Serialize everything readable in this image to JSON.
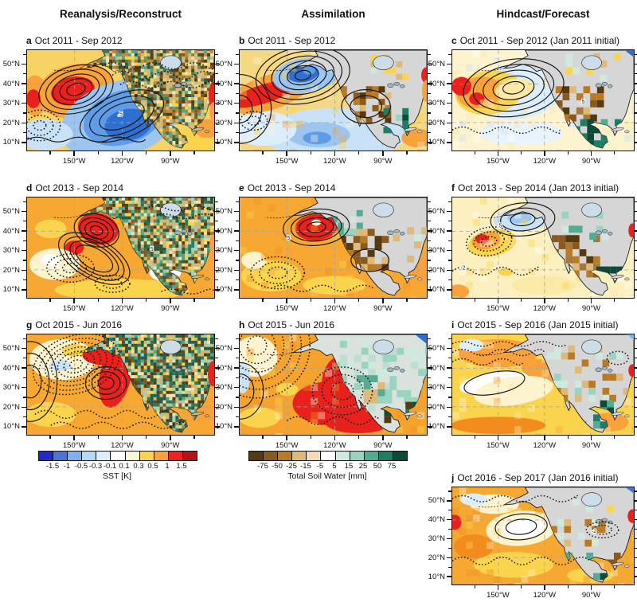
{
  "columns": [
    "Reanalysis/Reconstruct",
    "Assimilation",
    "Hindcast/Forecast"
  ],
  "panels": [
    {
      "letter": "a",
      "period": "Oct 2011 - Sep 2012",
      "contour_labels": [
        ".5"
      ]
    },
    {
      "letter": "b",
      "period": "Oct 2011 - Sep 2012",
      "contour_labels": []
    },
    {
      "letter": "c",
      "period": "Oct 2011 - Sep 2012 (Jan 2011 initial)",
      "contour_labels": [
        ".5"
      ]
    },
    {
      "letter": "d",
      "period": "Oct 2013 - Sep 2014",
      "contour_labels": [
        "5"
      ]
    },
    {
      "letter": "e",
      "period": "Oct 2013 - Sep 2014",
      "contour_labels": [
        "5"
      ]
    },
    {
      "letter": "f",
      "period": "Oct 2013 - Sep 2014 (Jan 2013 initial)",
      "contour_labels": [
        ".5",
        "-2"
      ]
    },
    {
      "letter": "g",
      "period": "Oct 2015 - Jun 2016",
      "contour_labels": []
    },
    {
      "letter": "h",
      "period": "Oct 2015 - Jun 2016",
      "contour_labels": []
    },
    {
      "letter": "i",
      "period": "Oct 2015 - Sep 2016 (Jan 2015 initial)",
      "contour_labels": []
    },
    {
      "letter": "j",
      "period": "Oct 2016 - Sep 2017 (Jan 2016 initial)",
      "contour_labels": [
        "-2"
      ]
    }
  ],
  "axes": {
    "lat_ticks": [
      "50°N",
      "40°N",
      "30°N",
      "20°N",
      "10°N"
    ],
    "lon_ticks": [
      "150°W",
      "120°W",
      "90°W"
    ]
  },
  "colorbars": [
    {
      "title": "SST [K]",
      "tick_labels": [
        "-1.5",
        "-1",
        "-0.5",
        "-0.3",
        "-0.1",
        "0.1",
        "0.3",
        "0.5",
        "1",
        "1.5"
      ],
      "segment_colors": [
        "#1f2bc8",
        "#4a74d8",
        "#7db0ef",
        "#b5d8f6",
        "#dcedfb",
        "#ffffff",
        "#fdf5d7",
        "#fbd44e",
        "#f9a23b",
        "#ee2222",
        "#b5121b"
      ]
    },
    {
      "title": "Total Soil Water [mm]",
      "tick_labels": [
        "-75",
        "-50",
        "-25",
        "-15",
        "-5",
        "5",
        "15",
        "25",
        "50",
        "75"
      ],
      "segment_colors": [
        "#57390f",
        "#8a5a1d",
        "#b97a24",
        "#ddb97a",
        "#f0ddb5",
        "#ffffff",
        "#cfe9df",
        "#99d4c1",
        "#54ab93",
        "#1f7d66",
        "#0d4a3a"
      ]
    }
  ],
  "chart_data": {
    "type": "heatmap",
    "description": "Ten map panels over the North Pacific and North America comparing SST anomalies (ocean shading, K) and total soil water anomalies (land shading, mm) with contoured circulation anomalies, for Reanalysis/Reconstruction, Assimilation and Hindcast/Forecast experiments.",
    "column_titles": [
      "Reanalysis/Reconstruct",
      "Assimilation",
      "Hindcast/Forecast"
    ],
    "panels": [
      {
        "id": "a",
        "column": "Reanalysis/Reconstruct",
        "period": "Oct 2011 - Sep 2012",
        "initialization": null
      },
      {
        "id": "b",
        "column": "Assimilation",
        "period": "Oct 2011 - Sep 2012",
        "initialization": null
      },
      {
        "id": "c",
        "column": "Hindcast/Forecast",
        "period": "Oct 2011 - Sep 2012",
        "initialization": "Jan 2011"
      },
      {
        "id": "d",
        "column": "Reanalysis/Reconstruct",
        "period": "Oct 2013 - Sep 2014",
        "initialization": null
      },
      {
        "id": "e",
        "column": "Assimilation",
        "period": "Oct 2013 - Sep 2014",
        "initialization": null
      },
      {
        "id": "f",
        "column": "Hindcast/Forecast",
        "period": "Oct 2013 - Sep 2014",
        "initialization": "Jan 2013"
      },
      {
        "id": "g",
        "column": "Reanalysis/Reconstruct",
        "period": "Oct 2015 - Jun 2016",
        "initialization": null
      },
      {
        "id": "h",
        "column": "Assimilation",
        "period": "Oct 2015 - Jun 2016",
        "initialization": null
      },
      {
        "id": "i",
        "column": "Hindcast/Forecast",
        "period": "Oct 2015 - Sep 2016",
        "initialization": "Jan 2015"
      },
      {
        "id": "j",
        "column": "Hindcast/Forecast",
        "period": "Oct 2016 - Sep 2017",
        "initialization": "Jan 2016"
      }
    ],
    "axes": {
      "lon_ticks": [
        "150°W",
        "120°W",
        "90°W"
      ],
      "lat_ticks": [
        "50°N",
        "40°N",
        "30°N",
        "20°N",
        "10°N"
      ]
    },
    "legends": [
      {
        "variable": "SST",
        "units": "K",
        "boundaries": [
          -1.5,
          -1,
          -0.5,
          -0.3,
          -0.1,
          0.1,
          0.3,
          0.5,
          1,
          1.5
        ],
        "colors": [
          "#1f2bc8",
          "#4a74d8",
          "#7db0ef",
          "#b5d8f6",
          "#dcedfb",
          "#ffffff",
          "#fdf5d7",
          "#fbd44e",
          "#f9a23b",
          "#ee2222",
          "#b5121b"
        ]
      },
      {
        "variable": "Total Soil Water",
        "units": "mm",
        "boundaries": [
          -75,
          -50,
          -25,
          -15,
          -5,
          5,
          15,
          25,
          50,
          75
        ],
        "colors": [
          "#57390f",
          "#8a5a1d",
          "#b97a24",
          "#ddb97a",
          "#f0ddb5",
          "#ffffff",
          "#cfe9df",
          "#99d4c1",
          "#54ab93",
          "#1f7d66",
          "#0d4a3a"
        ]
      }
    ],
    "contour_labels_visible": [
      ".5",
      "5",
      "-2"
    ]
  }
}
